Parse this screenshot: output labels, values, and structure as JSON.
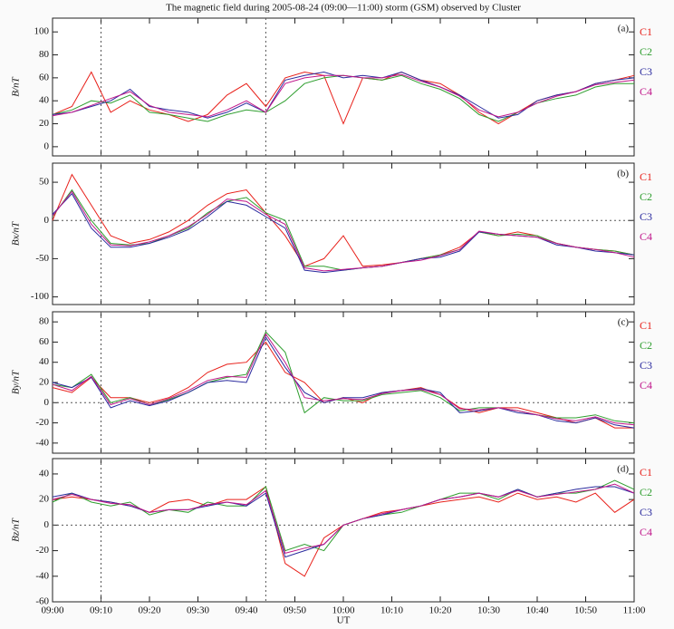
{
  "title": "The magnetic field during 2005-08-24 (09:00—11:00) storm (GSM) observed by Cluster",
  "xlabel": "UT",
  "chart_data": [
    {
      "type": "line",
      "panel": "(a)",
      "ylabel": "B/nT",
      "xlim": [
        "09:00",
        "11:00"
      ],
      "ylim": [
        -8,
        112
      ],
      "yticks": [
        0,
        20,
        40,
        60,
        80,
        100
      ],
      "vlines": [
        "09:10",
        "09:44"
      ],
      "hlines": [],
      "x": [
        "09:00",
        "09:04",
        "09:08",
        "09:12",
        "09:16",
        "09:20",
        "09:24",
        "09:28",
        "09:32",
        "09:36",
        "09:40",
        "09:44",
        "09:48",
        "09:52",
        "09:56",
        "10:00",
        "10:04",
        "10:08",
        "10:12",
        "10:16",
        "10:20",
        "10:24",
        "10:28",
        "10:32",
        "10:36",
        "10:40",
        "10:44",
        "10:48",
        "10:52",
        "10:56",
        "11:00"
      ],
      "series": [
        {
          "name": "C1",
          "color": "#e8201a",
          "values": [
            28,
            35,
            65,
            30,
            40,
            32,
            28,
            22,
            28,
            45,
            55,
            35,
            60,
            65,
            62,
            20,
            60,
            58,
            65,
            58,
            55,
            45,
            30,
            20,
            30,
            40,
            45,
            48,
            55,
            58,
            62
          ]
        },
        {
          "name": "C2",
          "color": "#2e9e2e",
          "values": [
            28,
            32,
            40,
            38,
            45,
            30,
            28,
            25,
            22,
            28,
            32,
            30,
            40,
            55,
            60,
            62,
            60,
            58,
            62,
            55,
            50,
            42,
            28,
            22,
            30,
            38,
            42,
            45,
            52,
            55,
            55
          ]
        },
        {
          "name": "C3",
          "color": "#2a2a9e",
          "values": [
            28,
            30,
            35,
            40,
            50,
            35,
            32,
            30,
            25,
            30,
            38,
            30,
            58,
            62,
            65,
            60,
            62,
            60,
            65,
            58,
            52,
            45,
            35,
            25,
            28,
            40,
            45,
            48,
            55,
            58,
            60
          ]
        },
        {
          "name": "C4",
          "color": "#c0168a",
          "values": [
            27,
            30,
            36,
            42,
            48,
            36,
            30,
            28,
            26,
            32,
            40,
            30,
            55,
            60,
            62,
            62,
            60,
            60,
            63,
            57,
            52,
            44,
            32,
            26,
            30,
            38,
            44,
            48,
            54,
            56,
            58
          ]
        }
      ]
    },
    {
      "type": "line",
      "panel": "(b)",
      "ylabel": "Bx/nT",
      "xlim": [
        "09:00",
        "11:00"
      ],
      "ylim": [
        -110,
        75
      ],
      "yticks": [
        -100,
        -50,
        0,
        50
      ],
      "vlines": [
        "09:10",
        "09:44"
      ],
      "hlines": [
        0
      ],
      "x": [
        "09:00",
        "09:04",
        "09:08",
        "09:12",
        "09:16",
        "09:20",
        "09:24",
        "09:28",
        "09:32",
        "09:36",
        "09:40",
        "09:44",
        "09:48",
        "09:52",
        "09:56",
        "10:00",
        "10:04",
        "10:08",
        "10:12",
        "10:16",
        "10:20",
        "10:24",
        "10:28",
        "10:32",
        "10:36",
        "10:40",
        "10:44",
        "10:48",
        "10:52",
        "10:56",
        "11:00"
      ],
      "series": [
        {
          "name": "C1",
          "color": "#e8201a",
          "values": [
            0,
            60,
            20,
            -20,
            -30,
            -25,
            -15,
            0,
            20,
            35,
            40,
            10,
            -20,
            -60,
            -50,
            -20,
            -60,
            -58,
            -55,
            -50,
            -45,
            -35,
            -15,
            -20,
            -15,
            -20,
            -30,
            -35,
            -38,
            -40,
            -45
          ]
        },
        {
          "name": "C2",
          "color": "#2e9e2e",
          "values": [
            5,
            40,
            0,
            -30,
            -32,
            -30,
            -20,
            -10,
            10,
            25,
            30,
            10,
            0,
            -60,
            -60,
            -65,
            -62,
            -60,
            -55,
            -50,
            -45,
            -38,
            -15,
            -20,
            -18,
            -20,
            -30,
            -35,
            -38,
            -40,
            -45
          ]
        },
        {
          "name": "C3",
          "color": "#2a2a9e",
          "values": [
            8,
            35,
            -10,
            -35,
            -35,
            -30,
            -22,
            -12,
            5,
            25,
            20,
            5,
            -10,
            -65,
            -68,
            -65,
            -62,
            -60,
            -55,
            -50,
            -48,
            -40,
            -15,
            -18,
            -20,
            -22,
            -32,
            -35,
            -40,
            -42,
            -45
          ]
        },
        {
          "name": "C4",
          "color": "#c0168a",
          "values": [
            6,
            38,
            -5,
            -32,
            -33,
            -28,
            -20,
            -8,
            8,
            28,
            25,
            8,
            -5,
            -62,
            -66,
            -64,
            -62,
            -60,
            -55,
            -52,
            -46,
            -38,
            -14,
            -18,
            -20,
            -22,
            -30,
            -35,
            -38,
            -42,
            -48
          ]
        }
      ]
    },
    {
      "type": "line",
      "panel": "(c)",
      "ylabel": "By/nT",
      "xlim": [
        "09:00",
        "11:00"
      ],
      "ylim": [
        -50,
        90
      ],
      "yticks": [
        -40,
        -20,
        0,
        20,
        40,
        60,
        80
      ],
      "vlines": [
        "09:10",
        "09:44"
      ],
      "hlines": [
        0
      ],
      "x": [
        "09:00",
        "09:04",
        "09:08",
        "09:12",
        "09:16",
        "09:20",
        "09:24",
        "09:28",
        "09:32",
        "09:36",
        "09:40",
        "09:44",
        "09:48",
        "09:52",
        "09:56",
        "10:00",
        "10:04",
        "10:08",
        "10:12",
        "10:16",
        "10:20",
        "10:24",
        "10:28",
        "10:32",
        "10:36",
        "10:40",
        "10:44",
        "10:48",
        "10:52",
        "10:56",
        "11:00"
      ],
      "series": [
        {
          "name": "C1",
          "color": "#e8201a",
          "values": [
            15,
            10,
            25,
            5,
            5,
            0,
            5,
            15,
            30,
            38,
            40,
            60,
            30,
            20,
            0,
            5,
            0,
            10,
            12,
            15,
            8,
            -5,
            -10,
            -5,
            -5,
            -10,
            -15,
            -20,
            -15,
            -25,
            -25
          ]
        },
        {
          "name": "C2",
          "color": "#2e9e2e",
          "values": [
            18,
            15,
            28,
            0,
            5,
            -2,
            3,
            10,
            20,
            25,
            28,
            70,
            50,
            -10,
            5,
            2,
            2,
            8,
            10,
            12,
            5,
            -8,
            -5,
            -5,
            -8,
            -12,
            -15,
            -15,
            -12,
            -18,
            -20
          ]
        },
        {
          "name": "C3",
          "color": "#2a2a9e",
          "values": [
            20,
            15,
            25,
            -5,
            2,
            -3,
            2,
            10,
            20,
            22,
            20,
            65,
            35,
            10,
            0,
            5,
            5,
            10,
            12,
            14,
            10,
            -10,
            -8,
            -5,
            -10,
            -12,
            -18,
            -20,
            -15,
            -22,
            -25
          ]
        },
        {
          "name": "C4",
          "color": "#c0168a",
          "values": [
            18,
            12,
            26,
            -2,
            4,
            -2,
            4,
            12,
            22,
            26,
            25,
            68,
            40,
            5,
            2,
            4,
            3,
            9,
            12,
            13,
            8,
            -6,
            -7,
            -5,
            -8,
            -12,
            -16,
            -18,
            -14,
            -20,
            -22
          ]
        }
      ]
    },
    {
      "type": "line",
      "panel": "(d)",
      "ylabel": "Bz/nT",
      "xlim": [
        "09:00",
        "11:00"
      ],
      "ylim": [
        -60,
        52
      ],
      "yticks": [
        -60,
        -40,
        -20,
        0,
        20,
        40
      ],
      "vlines": [
        "09:10",
        "09:44"
      ],
      "hlines": [
        0
      ],
      "xticks": [
        "09:00",
        "09:10",
        "09:20",
        "09:30",
        "09:40",
        "09:50",
        "10:00",
        "10:10",
        "10:20",
        "10:30",
        "10:40",
        "10:50",
        "11:00"
      ],
      "x": [
        "09:00",
        "09:04",
        "09:08",
        "09:12",
        "09:16",
        "09:20",
        "09:24",
        "09:28",
        "09:32",
        "09:36",
        "09:40",
        "09:44",
        "09:48",
        "09:52",
        "09:56",
        "10:00",
        "10:04",
        "10:08",
        "10:12",
        "10:16",
        "10:20",
        "10:24",
        "10:28",
        "10:32",
        "10:36",
        "10:40",
        "10:44",
        "10:48",
        "10:52",
        "10:56",
        "11:00"
      ],
      "series": [
        {
          "name": "C1",
          "color": "#e8201a",
          "values": [
            20,
            22,
            20,
            18,
            15,
            10,
            18,
            20,
            15,
            20,
            20,
            30,
            -30,
            -40,
            -10,
            0,
            5,
            10,
            12,
            15,
            18,
            20,
            22,
            18,
            25,
            20,
            22,
            18,
            25,
            10,
            20
          ]
        },
        {
          "name": "C2",
          "color": "#2e9e2e",
          "values": [
            18,
            25,
            18,
            15,
            18,
            8,
            12,
            10,
            18,
            15,
            15,
            30,
            -20,
            -15,
            -20,
            0,
            5,
            8,
            10,
            15,
            20,
            25,
            25,
            20,
            28,
            22,
            25,
            25,
            28,
            35,
            28
          ]
        },
        {
          "name": "C3",
          "color": "#2a2a9e",
          "values": [
            22,
            25,
            20,
            18,
            15,
            10,
            12,
            12,
            15,
            18,
            15,
            25,
            -25,
            -20,
            -15,
            0,
            5,
            8,
            12,
            15,
            20,
            22,
            25,
            22,
            28,
            22,
            25,
            28,
            30,
            30,
            25
          ]
        },
        {
          "name": "C4",
          "color": "#c0168a",
          "values": [
            20,
            24,
            20,
            17,
            16,
            10,
            12,
            12,
            16,
            18,
            16,
            27,
            -22,
            -18,
            -15,
            0,
            5,
            9,
            12,
            15,
            20,
            22,
            25,
            22,
            27,
            22,
            24,
            26,
            28,
            32,
            25
          ]
        }
      ]
    }
  ]
}
